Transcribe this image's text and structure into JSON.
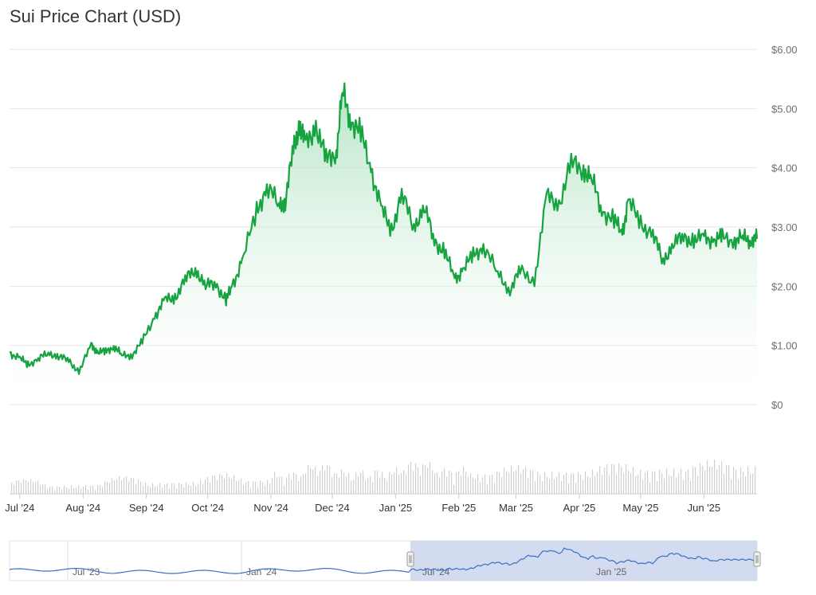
{
  "title": "Sui Price Chart (USD)",
  "colors": {
    "line": "#16a340",
    "fill_top": "#b9e8c6",
    "grid": "#e6e6e6",
    "volume": "#d0d0d0",
    "nav_line": "#3a6fc4",
    "nav_selection": "#c7d2ec"
  },
  "chart_data": {
    "type": "area",
    "title": "Sui Price Chart (USD)",
    "xlabel": "",
    "ylabel": "",
    "ylim": [
      0,
      6
    ],
    "yticks": [
      "$0",
      "$1.00",
      "$2.00",
      "$3.00",
      "$4.00",
      "$5.00",
      "$6.00"
    ],
    "xticks": [
      "Jul '24",
      "Aug '24",
      "Sep '24",
      "Oct '24",
      "Nov '24",
      "Dec '24",
      "Jan '25",
      "Feb '25",
      "Mar '25",
      "Apr '25",
      "May '25",
      "Jun '25"
    ],
    "grid": true,
    "series": [
      {
        "x": [
          "2024-06-26",
          "2024-07-01",
          "2024-07-05",
          "2024-07-10",
          "2024-07-15",
          "2024-07-20",
          "2024-07-25",
          "2024-07-30",
          "2024-08-05",
          "2024-08-08",
          "2024-08-12",
          "2024-08-16",
          "2024-08-20",
          "2024-08-25",
          "2024-08-30",
          "2024-09-05",
          "2024-09-10",
          "2024-09-15",
          "2024-09-20",
          "2024-09-25",
          "2024-09-30",
          "2024-10-05",
          "2024-10-10",
          "2024-10-13",
          "2024-10-18",
          "2024-10-25",
          "2024-10-30",
          "2024-11-05",
          "2024-11-08",
          "2024-11-12",
          "2024-11-15",
          "2024-11-18",
          "2024-11-23",
          "2024-11-28",
          "2024-12-03",
          "2024-12-06",
          "2024-12-10",
          "2024-12-15",
          "2024-12-20",
          "2024-12-25",
          "2024-12-30",
          "2025-01-04",
          "2025-01-10",
          "2025-01-15",
          "2025-01-20",
          "2025-01-25",
          "2025-01-30",
          "2025-02-03",
          "2025-02-08",
          "2025-02-13",
          "2025-02-20",
          "2025-02-26",
          "2025-03-03",
          "2025-03-10",
          "2025-03-16",
          "2025-03-22",
          "2025-03-28",
          "2025-04-03",
          "2025-04-07",
          "2025-04-12",
          "2025-04-18",
          "2025-04-22",
          "2025-04-25",
          "2025-05-01",
          "2025-05-07",
          "2025-05-12",
          "2025-05-17",
          "2025-05-22",
          "2025-05-27",
          "2025-06-01",
          "2025-06-06",
          "2025-06-10",
          "2025-06-16",
          "2025-06-20",
          "2025-06-24",
          "2025-06-27"
        ],
        "values": [
          0.88,
          0.78,
          0.68,
          0.77,
          0.87,
          0.82,
          0.74,
          0.56,
          1.0,
          0.9,
          0.88,
          1.0,
          0.82,
          0.85,
          1.05,
          1.5,
          1.75,
          1.82,
          2.1,
          2.3,
          2.0,
          2.05,
          1.75,
          2.0,
          2.45,
          3.25,
          3.7,
          3.35,
          3.45,
          4.3,
          4.75,
          4.35,
          4.75,
          4.1,
          4.3,
          5.25,
          4.85,
          4.55,
          4.0,
          3.3,
          2.95,
          3.55,
          3.0,
          3.35,
          2.75,
          2.6,
          2.1,
          2.3,
          2.5,
          2.7,
          2.2,
          1.95,
          2.25,
          2.1,
          3.5,
          3.4,
          4.05,
          4.0,
          3.8,
          3.3,
          3.1,
          2.9,
          3.45,
          3.05,
          2.9,
          2.4,
          2.75,
          2.8,
          2.8,
          2.8,
          2.8,
          2.8,
          2.8,
          2.8,
          2.8,
          2.8
        ]
      }
    ],
    "navigator": {
      "xticks": [
        "Jul '23",
        "Jan '24",
        "Jul '24",
        "Jan '25"
      ]
    }
  }
}
